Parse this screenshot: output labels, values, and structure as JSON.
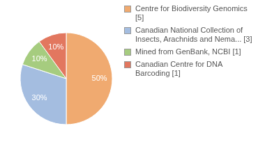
{
  "chart_data": {
    "type": "pie",
    "categories": [
      "Centre for Biodiversity Genomics [5]",
      "Canadian National Collection of Insects, Arachnids and Nema... [3]",
      "Mined from GenBank, NCBI [1]",
      "Canadian Centre for DNA Barcoding [1]"
    ],
    "values": [
      50,
      30,
      10,
      10
    ],
    "value_labels": [
      "50%",
      "30%",
      "10%",
      "10%"
    ],
    "colors": [
      "#f0aa70",
      "#a4bde0",
      "#a6cc7f",
      "#e2775f"
    ],
    "data_labels": true,
    "legend": "right"
  }
}
